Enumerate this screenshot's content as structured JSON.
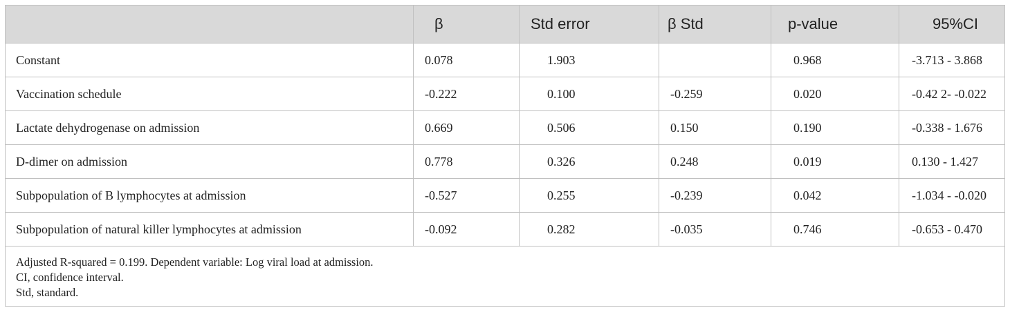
{
  "table": {
    "headers": [
      "",
      "β",
      "Std error",
      "β Std",
      "p-value",
      "95%CI"
    ],
    "rows": [
      [
        "Constant",
        "0.078",
        "1.903",
        "",
        "0.968",
        "-3.713 - 3.868"
      ],
      [
        "Vaccination schedule",
        "-0.222",
        "0.100",
        "-0.259",
        "0.020",
        "-0.42 2- -0.022"
      ],
      [
        "Lactate dehydrogenase on admission",
        "0.669",
        "0.506",
        "0.150",
        "0.190",
        "-0.338 - 1.676"
      ],
      [
        "D-dimer on admission",
        "0.778",
        "0.326",
        "0.248",
        "0.019",
        "0.130 - 1.427"
      ],
      [
        "Subpopulation of B lymphocytes at admission",
        "-0.527",
        "0.255",
        "-0.239",
        "0.042",
        "-1.034 - -0.020"
      ],
      [
        "Subpopulation of natural killer lymphocytes at admission",
        "-0.092",
        "0.282",
        "-0.035",
        "0.746",
        "-0.653 - 0.470"
      ]
    ],
    "footnotes": [
      "Adjusted R-squared = 0.199. Dependent variable: Log viral load at admission.",
      "CI, confidence interval.",
      "Std, standard."
    ]
  },
  "colors": {
    "header_background": "#d9d9d9",
    "border": "#c0c0c0",
    "text": "#222222"
  }
}
